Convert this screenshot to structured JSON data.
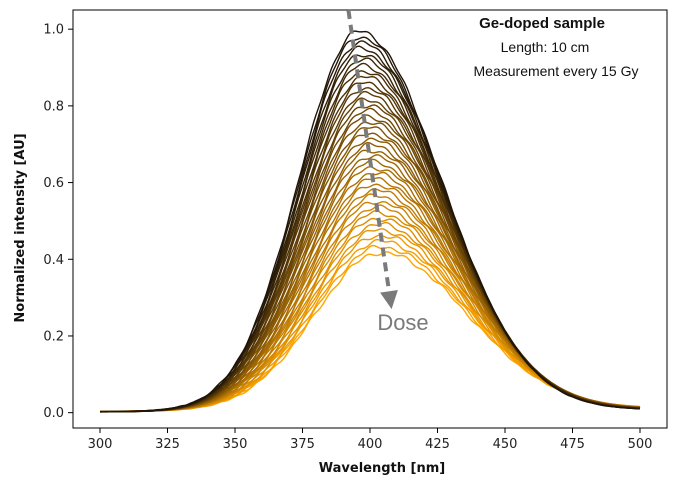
{
  "chart_data": {
    "type": "line",
    "title": "",
    "xlabel": "Wavelength [nm]",
    "ylabel": "Normalized intensity [AU]",
    "xlim": [
      290,
      510
    ],
    "ylim": [
      -0.04,
      1.05
    ],
    "xticks": [
      300,
      325,
      350,
      375,
      400,
      425,
      450,
      475,
      500
    ],
    "yticks": [
      0.0,
      0.2,
      0.4,
      0.6,
      0.8,
      1.0
    ],
    "xtick_labels": [
      "300",
      "325",
      "350",
      "375",
      "400",
      "425",
      "450",
      "475",
      "500"
    ],
    "ytick_labels": [
      "0.0",
      "0.2",
      "0.4",
      "0.6",
      "0.8",
      "1.0"
    ],
    "grid": false,
    "series_count": 40,
    "peak_first": {
      "x": 396,
      "y": 0.99
    },
    "peak_last": {
      "x": 404,
      "y": 0.41
    },
    "color_first": "#1f1408",
    "color_last": "#ffa500",
    "annotations": {
      "sample": "Ge-doped sample",
      "length": "Length: 10 cm",
      "measurement": "Measurement every 15 Gy",
      "dose": "Dose"
    },
    "dose_arrow": {
      "from": [
        392,
        1.05
      ],
      "to": [
        408,
        0.27
      ],
      "color": "#7a7a7a"
    }
  }
}
